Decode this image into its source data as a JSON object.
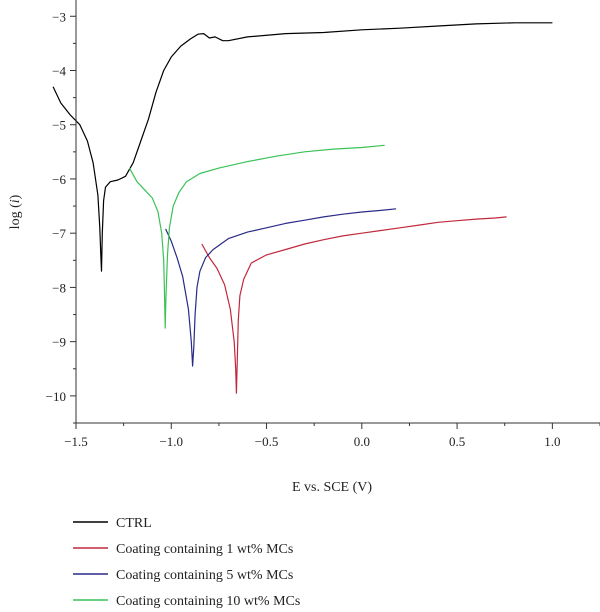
{
  "chart_data": {
    "type": "line",
    "title": "",
    "xlabel": "E vs. SCE (V)",
    "ylabel_prefix": "log (",
    "ylabel_var": "i",
    "ylabel_suffix": ")",
    "xlim": [
      -1.5,
      1.25
    ],
    "ylim": [
      -10.5,
      -2.7
    ],
    "xticks": [
      -1.5,
      -1.0,
      -0.5,
      0.0,
      0.5,
      1.0
    ],
    "xtick_labels": [
      "−1.5",
      "−1.0",
      "−0.5",
      "0.0",
      "0.5",
      "1.0"
    ],
    "yticks": [
      -3,
      -4,
      -5,
      -6,
      -7,
      -8,
      -9,
      -10
    ],
    "ytick_labels": [
      "−3",
      "−4",
      "−5",
      "−6",
      "−7",
      "−8",
      "−9",
      "−10"
    ],
    "grid": false,
    "legend_placement": "bottom",
    "series": [
      {
        "name": "CTRL",
        "color": "#000000",
        "points": [
          [
            -1.62,
            -4.3
          ],
          [
            -1.58,
            -4.6
          ],
          [
            -1.53,
            -4.82
          ],
          [
            -1.48,
            -5.0
          ],
          [
            -1.44,
            -5.3
          ],
          [
            -1.41,
            -5.7
          ],
          [
            -1.385,
            -6.3
          ],
          [
            -1.375,
            -6.9
          ],
          [
            -1.37,
            -7.4
          ],
          [
            -1.366,
            -7.7
          ],
          [
            -1.362,
            -7.0
          ],
          [
            -1.355,
            -6.4
          ],
          [
            -1.345,
            -6.15
          ],
          [
            -1.32,
            -6.05
          ],
          [
            -1.28,
            -6.02
          ],
          [
            -1.24,
            -5.95
          ],
          [
            -1.2,
            -5.7
          ],
          [
            -1.16,
            -5.3
          ],
          [
            -1.12,
            -4.9
          ],
          [
            -1.08,
            -4.4
          ],
          [
            -1.04,
            -4.0
          ],
          [
            -1.0,
            -3.75
          ],
          [
            -0.95,
            -3.55
          ],
          [
            -0.9,
            -3.42
          ],
          [
            -0.86,
            -3.33
          ],
          [
            -0.83,
            -3.32
          ],
          [
            -0.8,
            -3.4
          ],
          [
            -0.77,
            -3.38
          ],
          [
            -0.73,
            -3.45
          ],
          [
            -0.7,
            -3.45
          ],
          [
            -0.6,
            -3.38
          ],
          [
            -0.4,
            -3.32
          ],
          [
            -0.2,
            -3.3
          ],
          [
            0.0,
            -3.25
          ],
          [
            0.2,
            -3.22
          ],
          [
            0.4,
            -3.18
          ],
          [
            0.6,
            -3.14
          ],
          [
            0.8,
            -3.12
          ],
          [
            1.0,
            -3.12
          ]
        ]
      },
      {
        "name": "Coating containing 1 wt% MCs",
        "color": "#c0283c",
        "points": [
          [
            -0.84,
            -7.2
          ],
          [
            -0.8,
            -7.45
          ],
          [
            -0.76,
            -7.65
          ],
          [
            -0.72,
            -7.95
          ],
          [
            -0.69,
            -8.4
          ],
          [
            -0.67,
            -9.0
          ],
          [
            -0.662,
            -9.5
          ],
          [
            -0.658,
            -9.95
          ],
          [
            -0.654,
            -9.4
          ],
          [
            -0.648,
            -8.6
          ],
          [
            -0.64,
            -8.15
          ],
          [
            -0.62,
            -7.85
          ],
          [
            -0.58,
            -7.55
          ],
          [
            -0.5,
            -7.4
          ],
          [
            -0.4,
            -7.3
          ],
          [
            -0.3,
            -7.2
          ],
          [
            -0.2,
            -7.12
          ],
          [
            -0.1,
            -7.05
          ],
          [
            0.0,
            -7.0
          ],
          [
            0.1,
            -6.95
          ],
          [
            0.2,
            -6.9
          ],
          [
            0.3,
            -6.85
          ],
          [
            0.4,
            -6.8
          ],
          [
            0.5,
            -6.77
          ],
          [
            0.6,
            -6.74
          ],
          [
            0.7,
            -6.72
          ],
          [
            0.76,
            -6.7
          ]
        ]
      },
      {
        "name": "Coating containing 5 wt% MCs",
        "color": "#2a2a88",
        "points": [
          [
            -1.03,
            -6.92
          ],
          [
            -1.0,
            -7.15
          ],
          [
            -0.97,
            -7.45
          ],
          [
            -0.94,
            -7.8
          ],
          [
            -0.91,
            -8.4
          ],
          [
            -0.895,
            -9.0
          ],
          [
            -0.888,
            -9.45
          ],
          [
            -0.882,
            -9.1
          ],
          [
            -0.875,
            -8.5
          ],
          [
            -0.865,
            -8.0
          ],
          [
            -0.85,
            -7.7
          ],
          [
            -0.82,
            -7.45
          ],
          [
            -0.78,
            -7.3
          ],
          [
            -0.7,
            -7.1
          ],
          [
            -0.6,
            -6.98
          ],
          [
            -0.5,
            -6.9
          ],
          [
            -0.4,
            -6.82
          ],
          [
            -0.3,
            -6.76
          ],
          [
            -0.2,
            -6.7
          ],
          [
            -0.1,
            -6.65
          ],
          [
            0.0,
            -6.61
          ],
          [
            0.1,
            -6.58
          ],
          [
            0.18,
            -6.55
          ]
        ]
      },
      {
        "name": "Coating containing 10 wt% MCs",
        "color": "#3bc257",
        "points": [
          [
            -1.22,
            -5.8
          ],
          [
            -1.18,
            -6.05
          ],
          [
            -1.14,
            -6.2
          ],
          [
            -1.1,
            -6.35
          ],
          [
            -1.07,
            -6.6
          ],
          [
            -1.05,
            -7.0
          ],
          [
            -1.04,
            -7.5
          ],
          [
            -1.035,
            -8.2
          ],
          [
            -1.032,
            -8.75
          ],
          [
            -1.028,
            -8.2
          ],
          [
            -1.02,
            -7.4
          ],
          [
            -1.01,
            -6.9
          ],
          [
            -0.99,
            -6.5
          ],
          [
            -0.96,
            -6.25
          ],
          [
            -0.92,
            -6.05
          ],
          [
            -0.85,
            -5.9
          ],
          [
            -0.75,
            -5.8
          ],
          [
            -0.6,
            -5.68
          ],
          [
            -0.45,
            -5.58
          ],
          [
            -0.3,
            -5.5
          ],
          [
            -0.15,
            -5.45
          ],
          [
            0.0,
            -5.42
          ],
          [
            0.12,
            -5.38
          ]
        ]
      }
    ]
  }
}
